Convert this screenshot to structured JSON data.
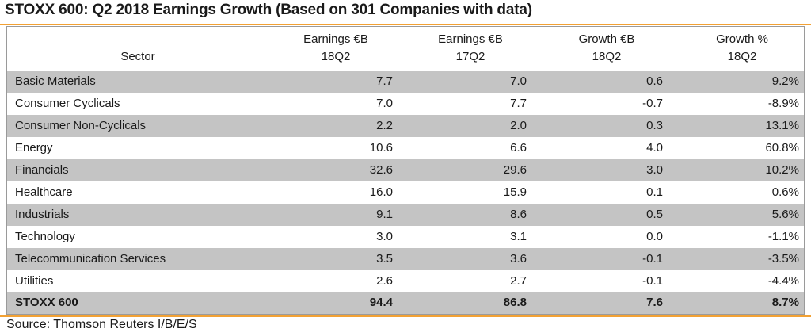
{
  "title": "STOXX 600: Q2 2018 Earnings Growth (Based on 301 Companies with data)",
  "columns": [
    {
      "line1": "",
      "line2": "Sector"
    },
    {
      "line1": "Earnings €B",
      "line2": "18Q2"
    },
    {
      "line1": "Earnings €B",
      "line2": "17Q2"
    },
    {
      "line1": "Growth €B",
      "line2": "18Q2"
    },
    {
      "line1": "Growth %",
      "line2": "18Q2"
    }
  ],
  "rows": [
    {
      "sector": "Basic Materials",
      "e18": "7.7",
      "e17": "7.0",
      "g": "0.6",
      "gp": "9.2%"
    },
    {
      "sector": "Consumer Cyclicals",
      "e18": "7.0",
      "e17": "7.7",
      "g": "-0.7",
      "gp": "-8.9%"
    },
    {
      "sector": "Consumer Non-Cyclicals",
      "e18": "2.2",
      "e17": "2.0",
      "g": "0.3",
      "gp": "13.1%"
    },
    {
      "sector": "Energy",
      "e18": "10.6",
      "e17": "6.6",
      "g": "4.0",
      "gp": "60.8%"
    },
    {
      "sector": "Financials",
      "e18": "32.6",
      "e17": "29.6",
      "g": "3.0",
      "gp": "10.2%"
    },
    {
      "sector": "Healthcare",
      "e18": "16.0",
      "e17": "15.9",
      "g": "0.1",
      "gp": "0.6%"
    },
    {
      "sector": "Industrials",
      "e18": "9.1",
      "e17": "8.6",
      "g": "0.5",
      "gp": "5.6%"
    },
    {
      "sector": "Technology",
      "e18": "3.0",
      "e17": "3.1",
      "g": "0.0",
      "gp": "-1.1%"
    },
    {
      "sector": "Telecommunication Services",
      "e18": "3.5",
      "e17": "3.6",
      "g": "-0.1",
      "gp": "-3.5%"
    },
    {
      "sector": "Utilities",
      "e18": "2.6",
      "e17": "2.7",
      "g": "-0.1",
      "gp": "-4.4%"
    }
  ],
  "total": {
    "sector": "STOXX 600",
    "e18": "94.4",
    "e17": "86.8",
    "g": "7.6",
    "gp": "8.7%"
  },
  "source": "Source: Thomson Reuters I/B/E/S",
  "colors": {
    "accent": "#f2a134",
    "shaded_row": "#c4c4c4"
  }
}
